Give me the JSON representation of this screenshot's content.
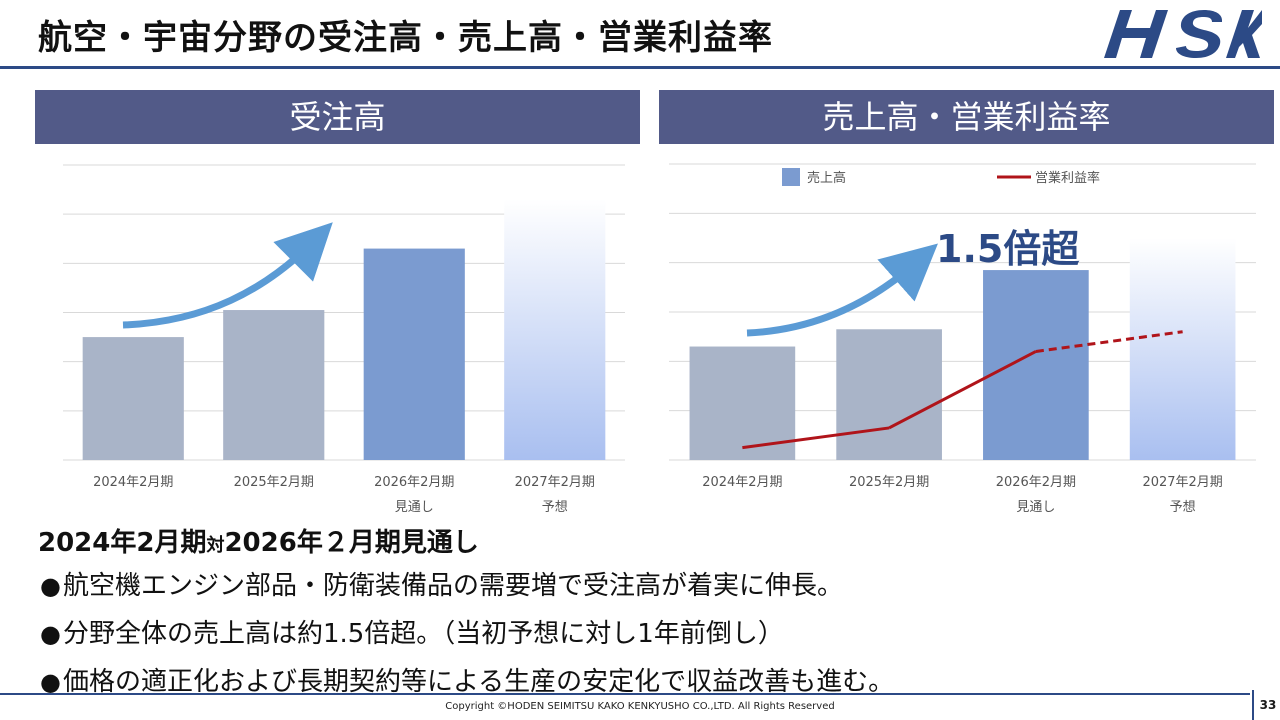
{
  "slide": {
    "title": "航空・宇宙分野の受注高・売上高・営業利益率",
    "logo_text": "HSK",
    "page_number": "33",
    "copyright": "Copyright ©HODEN SEIMITSU KAKO KENKYUSHO CO.,LTD. All Rights Reserved"
  },
  "orders_panel": {
    "header": "受注高"
  },
  "sales_panel": {
    "header": "売上高・営業利益率",
    "legend_bar": "売上高",
    "legend_line": "営業利益率",
    "callout": "1.5倍超"
  },
  "summary": {
    "heading_a": "2024年2月期",
    "heading_b": "対",
    "heading_c": "2026年２月期見通し",
    "bullet_marker": "●",
    "bullets": [
      "航空機エンジン部品・防衛装備品の需要増で受注高が着実に伸長。",
      "分野全体の売上高は約1.5倍超。（当初予想に対し1年前倒し）",
      "価格の適正化および長期契約等による生産の安定化で収益改善も進む。"
    ]
  },
  "colors": {
    "title_rule": "#2c4a86",
    "panel_header": "#525a88",
    "bar_actual": "#a9b4c8",
    "bar_outlook": "#7b9bd0",
    "bar_forecast_top": "#ffffff",
    "bar_forecast_bottom": "#a9bff0",
    "arrow": "#5b9bd5",
    "line": "#b0141a"
  },
  "chart_data": [
    {
      "type": "bar",
      "title": "受注高",
      "categories": [
        "2024年2月期",
        "2025年2月期",
        "2026年2月期",
        "2027年2月期"
      ],
      "category_sublabels": [
        "",
        "",
        "見通し",
        "予想"
      ],
      "values": [
        2.5,
        3.05,
        4.3,
        5.3
      ],
      "ylim": [
        0,
        6
      ],
      "y_axis_labels": false,
      "grid": true,
      "trend_arrow": true
    },
    {
      "type": "bar",
      "title": "売上高・営業利益率",
      "categories": [
        "2024年2月期",
        "2025年2月期",
        "2026年2月期",
        "2027年2月期"
      ],
      "category_sublabels": [
        "",
        "",
        "見通し",
        "予想"
      ],
      "y_axis_labels": false,
      "grid": true,
      "legend": "top",
      "ylim": [
        0,
        6
      ],
      "series": [
        {
          "name": "売上高",
          "type": "bar",
          "values": [
            2.3,
            2.65,
            3.85,
            4.5
          ]
        },
        {
          "name": "営業利益率",
          "type": "line",
          "values": [
            0.25,
            0.65,
            2.2,
            2.6
          ],
          "dashed_from_index": 2
        }
      ],
      "annotation": "1.5倍超",
      "trend_arrow": true
    }
  ]
}
